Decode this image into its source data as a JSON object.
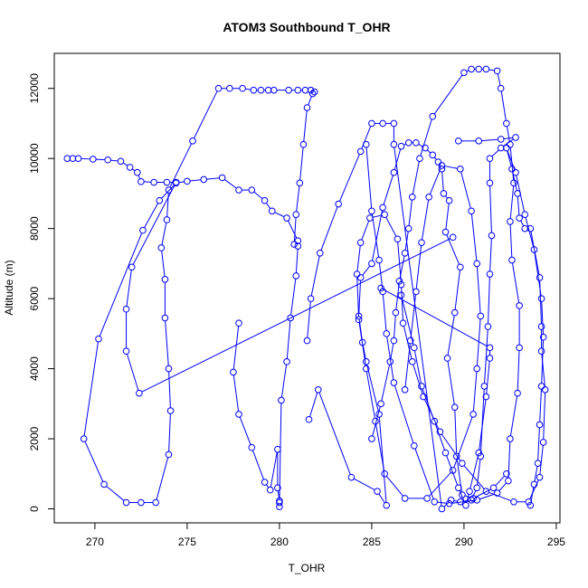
{
  "chart_data": {
    "type": "line",
    "title": "ATOM3 Southbound T_OHR",
    "xlabel": "T_OHR",
    "ylabel": "Altitude (m)",
    "xlim": [
      267.8,
      295.2
    ],
    "ylim": [
      -400,
      13000
    ],
    "xticks": [
      270,
      275,
      280,
      285,
      290,
      295
    ],
    "yticks": [
      0,
      2000,
      4000,
      6000,
      8000,
      10000,
      12000
    ],
    "markers": "open-circle",
    "grid": false,
    "colors": {
      "series": "#0000ff",
      "axes": "#000000"
    },
    "series": [
      {
        "points": [
          [
            280.0,
            60
          ],
          [
            280.0,
            230
          ],
          [
            279.9,
            600
          ],
          [
            279.9,
            1700
          ],
          [
            279.5,
            540
          ],
          [
            279.2,
            760
          ],
          [
            278.5,
            1750
          ],
          [
            277.8,
            2700
          ],
          [
            277.5,
            3900
          ],
          [
            277.8,
            5300
          ]
        ]
      },
      {
        "points": [
          [
            280.0,
            180
          ],
          [
            280.1,
            3100
          ],
          [
            280.4,
            4200
          ],
          [
            280.6,
            5450
          ],
          [
            280.9,
            6650
          ],
          [
            281.0,
            7500
          ],
          [
            280.8,
            7550
          ],
          [
            280.9,
            8400
          ],
          [
            281.1,
            9300
          ],
          [
            281.3,
            10400
          ],
          [
            281.5,
            11450
          ],
          [
            281.8,
            11850
          ],
          [
            281.9,
            11900
          ],
          [
            281.7,
            11950
          ],
          [
            281.4,
            11950
          ],
          [
            281.0,
            11950
          ],
          [
            280.5,
            11950
          ],
          [
            279.7,
            11950
          ],
          [
            279.4,
            11950
          ],
          [
            279.0,
            11950
          ],
          [
            278.6,
            11950
          ],
          [
            278.0,
            12000
          ],
          [
            277.3,
            12000
          ],
          [
            276.7,
            12000
          ],
          [
            275.3,
            10500
          ],
          [
            274.0,
            9100
          ],
          [
            273.9,
            8250
          ],
          [
            273.6,
            7450
          ],
          [
            273.8,
            6550
          ],
          [
            273.8,
            5450
          ],
          [
            274.0,
            4000
          ],
          [
            274.1,
            2800
          ],
          [
            274.0,
            1550
          ],
          [
            273.3,
            180
          ],
          [
            272.5,
            180
          ],
          [
            271.7,
            180
          ],
          [
            270.5,
            700
          ],
          [
            269.4,
            2000
          ],
          [
            270.2,
            4850
          ],
          [
            272.6,
            7950
          ],
          [
            273.5,
            8800
          ],
          [
            274.4,
            9300
          ],
          [
            275.0,
            9350
          ],
          [
            275.9,
            9400
          ],
          [
            276.9,
            9450
          ],
          [
            277.8,
            9100
          ],
          [
            278.5,
            9100
          ],
          [
            279.2,
            8800
          ],
          [
            279.6,
            8500
          ],
          [
            280.4,
            8300
          ],
          [
            281.0,
            7650
          ]
        ]
      },
      {
        "points": [
          [
            268.5,
            10000
          ],
          [
            268.8,
            10000
          ],
          [
            269.1,
            10000
          ],
          [
            269.9,
            9980
          ],
          [
            270.7,
            9960
          ],
          [
            271.4,
            9920
          ],
          [
            271.9,
            9750
          ],
          [
            272.3,
            9600
          ],
          [
            272.5,
            9340
          ],
          [
            273.2,
            9320
          ],
          [
            273.9,
            9320
          ],
          [
            274.4,
            9320
          ],
          [
            272.0,
            6900
          ],
          [
            271.7,
            5700
          ],
          [
            271.7,
            4500
          ],
          [
            272.4,
            3300
          ],
          [
            289.4,
            7750
          ]
        ]
      },
      {
        "points": [
          [
            281.6,
            2550
          ],
          [
            282.1,
            3400
          ],
          [
            283.9,
            900
          ],
          [
            285.3,
            500
          ],
          [
            285.8,
            100
          ],
          [
            285.4,
            2700
          ],
          [
            284.7,
            4200
          ],
          [
            284.5,
            4750
          ],
          [
            284.3,
            5500
          ],
          [
            284.4,
            6600
          ],
          [
            285.0,
            7000
          ],
          [
            285.6,
            8600
          ],
          [
            286.2,
            9600
          ],
          [
            286.6,
            10350
          ],
          [
            287.0,
            10450
          ],
          [
            287.4,
            10450
          ],
          [
            287.9,
            10300
          ],
          [
            288.3,
            10100
          ],
          [
            288.6,
            9900
          ],
          [
            288.8,
            9700
          ],
          [
            288.9,
            9000
          ],
          [
            289.2,
            8800
          ],
          [
            289.0,
            7900
          ],
          [
            289.8,
            6900
          ],
          [
            289.5,
            5600
          ],
          [
            289.1,
            4300
          ],
          [
            289.5,
            2900
          ],
          [
            289.6,
            1500
          ],
          [
            289.9,
            400
          ],
          [
            290.5,
            300
          ],
          [
            291.6,
            600
          ],
          [
            292.3,
            1000
          ]
        ]
      },
      {
        "points": [
          [
            281.5,
            4800
          ],
          [
            281.7,
            6000
          ],
          [
            282.2,
            7300
          ],
          [
            283.2,
            8700
          ],
          [
            284.4,
            10200
          ],
          [
            285.0,
            11000
          ],
          [
            285.6,
            11000
          ],
          [
            286.2,
            11000
          ],
          [
            286.2,
            10400
          ],
          [
            288.8,
            0
          ],
          [
            289.3,
            250
          ],
          [
            289.8,
            200
          ],
          [
            290.4,
            250
          ],
          [
            290.7,
            600
          ],
          [
            290.9,
            1500
          ],
          [
            291.1,
            3500
          ],
          [
            291.3,
            5200
          ],
          [
            291.4,
            6700
          ],
          [
            291.5,
            7800
          ],
          [
            291.4,
            9300
          ],
          [
            291.4,
            10000
          ],
          [
            292.0,
            10300
          ],
          [
            292.8,
            10600
          ],
          [
            292.0,
            10550
          ],
          [
            290.8,
            10500
          ],
          [
            289.7,
            10500
          ]
        ]
      },
      {
        "points": [
          [
            284.7,
            10400
          ],
          [
            285.0,
            8500
          ],
          [
            285.4,
            7100
          ],
          [
            285.6,
            6200
          ],
          [
            285.8,
            5000
          ],
          [
            286.2,
            3600
          ],
          [
            287.3,
            1800
          ],
          [
            288.4,
            200
          ],
          [
            289.2,
            150
          ],
          [
            290.7,
            250
          ],
          [
            291.8,
            450
          ],
          [
            292.4,
            800
          ],
          [
            292.5,
            2000
          ],
          [
            292.9,
            3300
          ],
          [
            293.0,
            4600
          ],
          [
            293.0,
            5800
          ],
          [
            292.6,
            7100
          ],
          [
            292.5,
            8200
          ],
          [
            292.7,
            9300
          ],
          [
            292.5,
            10400
          ],
          [
            292.3,
            11000
          ],
          [
            292.0,
            12000
          ],
          [
            291.8,
            12500
          ],
          [
            291.2,
            12550
          ],
          [
            290.8,
            12550
          ],
          [
            290.4,
            12550
          ],
          [
            290.0,
            12450
          ],
          [
            288.3,
            11200
          ],
          [
            287.6,
            10000
          ],
          [
            287.2,
            8900
          ],
          [
            287.0,
            8000
          ],
          [
            286.8,
            7300
          ],
          [
            286.5,
            6500
          ],
          [
            286.3,
            5600
          ],
          [
            286.2,
            4800
          ],
          [
            286.0,
            4200
          ],
          [
            285.5,
            3000
          ],
          [
            285.0,
            2000
          ]
        ]
      },
      {
        "points": [
          [
            286.8,
            3400
          ],
          [
            287.1,
            4800
          ],
          [
            287.4,
            6200
          ],
          [
            287.7,
            7600
          ],
          [
            288.1,
            8900
          ],
          [
            288.8,
            9800
          ],
          [
            289.8,
            9700
          ],
          [
            290.4,
            8500
          ],
          [
            290.7,
            7000
          ],
          [
            290.9,
            5500
          ],
          [
            290.7,
            4000
          ],
          [
            290.5,
            2700
          ],
          [
            289.4,
            1100
          ],
          [
            288.0,
            300
          ],
          [
            286.8,
            300
          ],
          [
            285.7,
            1000
          ],
          [
            285.2,
            2500
          ],
          [
            284.7,
            4000
          ],
          [
            284.3,
            5400
          ],
          [
            284.2,
            6700
          ],
          [
            284.4,
            7600
          ],
          [
            284.9,
            8300
          ],
          [
            285.7,
            8400
          ],
          [
            286.4,
            7700
          ],
          [
            286.6,
            6400
          ],
          [
            286.7,
            5300
          ],
          [
            287.2,
            4200
          ],
          [
            287.8,
            3200
          ],
          [
            288.7,
            2200
          ],
          [
            289.9,
            1300
          ],
          [
            291.2,
            500
          ],
          [
            292.7,
            200
          ],
          [
            293.5,
            200
          ],
          [
            294.1,
            900
          ],
          [
            294.3,
            1900
          ],
          [
            294.4,
            3400
          ],
          [
            294.2,
            4500
          ],
          [
            294.2,
            5200
          ],
          [
            294.1,
            6600
          ],
          [
            293.6,
            8000
          ],
          [
            293.3,
            8000
          ],
          [
            293.0,
            8300
          ],
          [
            292.9,
            9000
          ],
          [
            292.6,
            9700
          ],
          [
            292.3,
            10300
          ],
          [
            292.8,
            9600
          ],
          [
            293.3,
            8400
          ],
          [
            293.8,
            7400
          ],
          [
            294.2,
            6000
          ],
          [
            294.3,
            4900
          ],
          [
            294.2,
            3500
          ],
          [
            294.1,
            2400
          ],
          [
            294.0,
            1300
          ],
          [
            293.8,
            700
          ],
          [
            293.6,
            100
          ]
        ]
      },
      {
        "points": [
          [
            286.6,
            6100
          ],
          [
            287.3,
            4600
          ],
          [
            287.7,
            3500
          ],
          [
            288.4,
            2500
          ],
          [
            289.0,
            1600
          ],
          [
            289.7,
            600
          ],
          [
            290.1,
            100
          ],
          [
            290.3,
            500
          ],
          [
            290.8,
            1600
          ],
          [
            291.2,
            3200
          ],
          [
            291.4,
            4300
          ],
          [
            291.4,
            4600
          ],
          [
            285.5,
            6300
          ]
        ]
      }
    ]
  }
}
